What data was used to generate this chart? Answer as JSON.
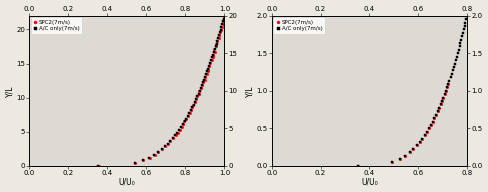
{
  "left_plot": {
    "xlabel": "U/U₀",
    "ylabel": "Y/L",
    "xlim": [
      0,
      1.0
    ],
    "ylim_main": [
      0,
      22
    ],
    "ylim_right": [
      0,
      20
    ],
    "xticks": [
      0,
      0.2,
      0.4,
      0.6,
      0.8,
      1.0
    ],
    "yticks_left": [
      0,
      5,
      10,
      15,
      20
    ],
    "yticks_right": [
      0,
      5,
      10,
      15,
      20
    ],
    "legend": [
      "A/C only(7m/s)",
      "SPC2(7m/s)"
    ],
    "ac_color": "black",
    "spc2_color": "red",
    "ac_marker": "s",
    "spc2_marker": "o",
    "ac_x": [
      0.355,
      0.365,
      0.375,
      0.382,
      0.39,
      0.398,
      0.408,
      0.42,
      0.432,
      0.445,
      0.46,
      0.476,
      0.494,
      0.514,
      0.536,
      0.56,
      0.587,
      0.617,
      0.65,
      0.685,
      0.722,
      0.761,
      0.8,
      0.838,
      0.874,
      0.907,
      0.936,
      0.959,
      0.977,
      0.99,
      0.998,
      1.0,
      1.0,
      1.0,
      1.0,
      1.0,
      1.0,
      1.0,
      1.0,
      1.0,
      1.0,
      1.0
    ],
    "ac_y": [
      0.0,
      0.04,
      0.08,
      0.12,
      0.16,
      0.2,
      0.25,
      0.3,
      0.36,
      0.43,
      0.51,
      0.6,
      0.71,
      0.84,
      0.99,
      1.17,
      1.38,
      1.63,
      1.93,
      2.28,
      2.7,
      3.2,
      3.8,
      4.5,
      5.35,
      6.35,
      7.55,
      9.0,
      10.7,
      12.7,
      15.0,
      17.0,
      18.0,
      18.8,
      19.4,
      19.8,
      20.2,
      20.6,
      21.0,
      21.4,
      21.8,
      22.0
    ],
    "spc2_x": [
      0.355,
      0.365,
      0.375,
      0.382,
      0.39,
      0.398,
      0.408,
      0.42,
      0.432,
      0.445,
      0.46,
      0.476,
      0.494,
      0.514,
      0.536,
      0.56,
      0.587,
      0.617,
      0.65,
      0.685,
      0.722,
      0.761,
      0.8,
      0.838,
      0.874,
      0.907,
      0.936,
      0.959,
      0.977,
      0.99,
      0.998,
      1.0,
      1.0,
      1.0,
      1.0,
      1.0,
      1.0,
      1.0,
      1.0,
      1.0,
      1.0,
      1.0
    ],
    "spc2_y": [
      0.0,
      0.04,
      0.08,
      0.12,
      0.16,
      0.2,
      0.25,
      0.3,
      0.36,
      0.43,
      0.51,
      0.6,
      0.71,
      0.84,
      0.99,
      1.17,
      1.38,
      1.63,
      1.93,
      2.28,
      2.7,
      3.2,
      3.8,
      4.5,
      5.35,
      6.35,
      7.55,
      9.0,
      10.7,
      12.7,
      15.0,
      17.0,
      18.0,
      18.8,
      19.4,
      19.8,
      20.2,
      20.6,
      21.0,
      21.4,
      21.8,
      22.0
    ]
  },
  "right_plot": {
    "xlabel": "U/U₀",
    "ylabel": "Y/L",
    "xlim": [
      0,
      0.8
    ],
    "ylim_main": [
      0,
      2.0
    ],
    "ylim_right": [
      0,
      2.0
    ],
    "xticks": [
      0,
      0.2,
      0.4,
      0.6,
      0.8
    ],
    "yticks_left": [
      0,
      0.5,
      1.0,
      1.5,
      2.0
    ],
    "yticks_right": [
      0,
      0.5,
      1.0,
      1.5,
      2.0
    ],
    "legend": [
      "A/C only(7m/s)",
      "SPC2(7m/s)"
    ],
    "ac_color": "black",
    "spc2_color": "red",
    "ac_marker": "s",
    "spc2_marker": "o",
    "ac_x": [
      0.355,
      0.365,
      0.375,
      0.382,
      0.39,
      0.398,
      0.408,
      0.42,
      0.432,
      0.445,
      0.46,
      0.476,
      0.494,
      0.514,
      0.536,
      0.56,
      0.587,
      0.617,
      0.65,
      0.685,
      0.722,
      0.761,
      0.8
    ],
    "ac_y": [
      0.0,
      0.04,
      0.08,
      0.12,
      0.16,
      0.2,
      0.25,
      0.3,
      0.36,
      0.43,
      0.51,
      0.6,
      0.71,
      0.84,
      0.99,
      1.17,
      1.38,
      1.63,
      1.93,
      2.0,
      2.0,
      2.0,
      2.0
    ],
    "spc2_x": [
      0.355,
      0.365,
      0.375,
      0.382,
      0.39,
      0.398,
      0.408,
      0.42,
      0.432,
      0.445,
      0.46,
      0.476,
      0.494,
      0.514,
      0.536,
      0.56,
      0.587,
      0.617,
      0.65,
      0.685,
      0.722,
      0.761,
      0.8
    ],
    "spc2_y": [
      0.0,
      0.04,
      0.08,
      0.12,
      0.16,
      0.2,
      0.25,
      0.3,
      0.36,
      0.43,
      0.51,
      0.6,
      0.71,
      0.84,
      0.99,
      1.17,
      1.38,
      1.63,
      1.93,
      2.0,
      2.0,
      2.0,
      2.0
    ]
  },
  "bg_color": "#ede8e0",
  "plot_bg": "#dedad3",
  "marker_size": 1.8,
  "fontsize": 5.5
}
